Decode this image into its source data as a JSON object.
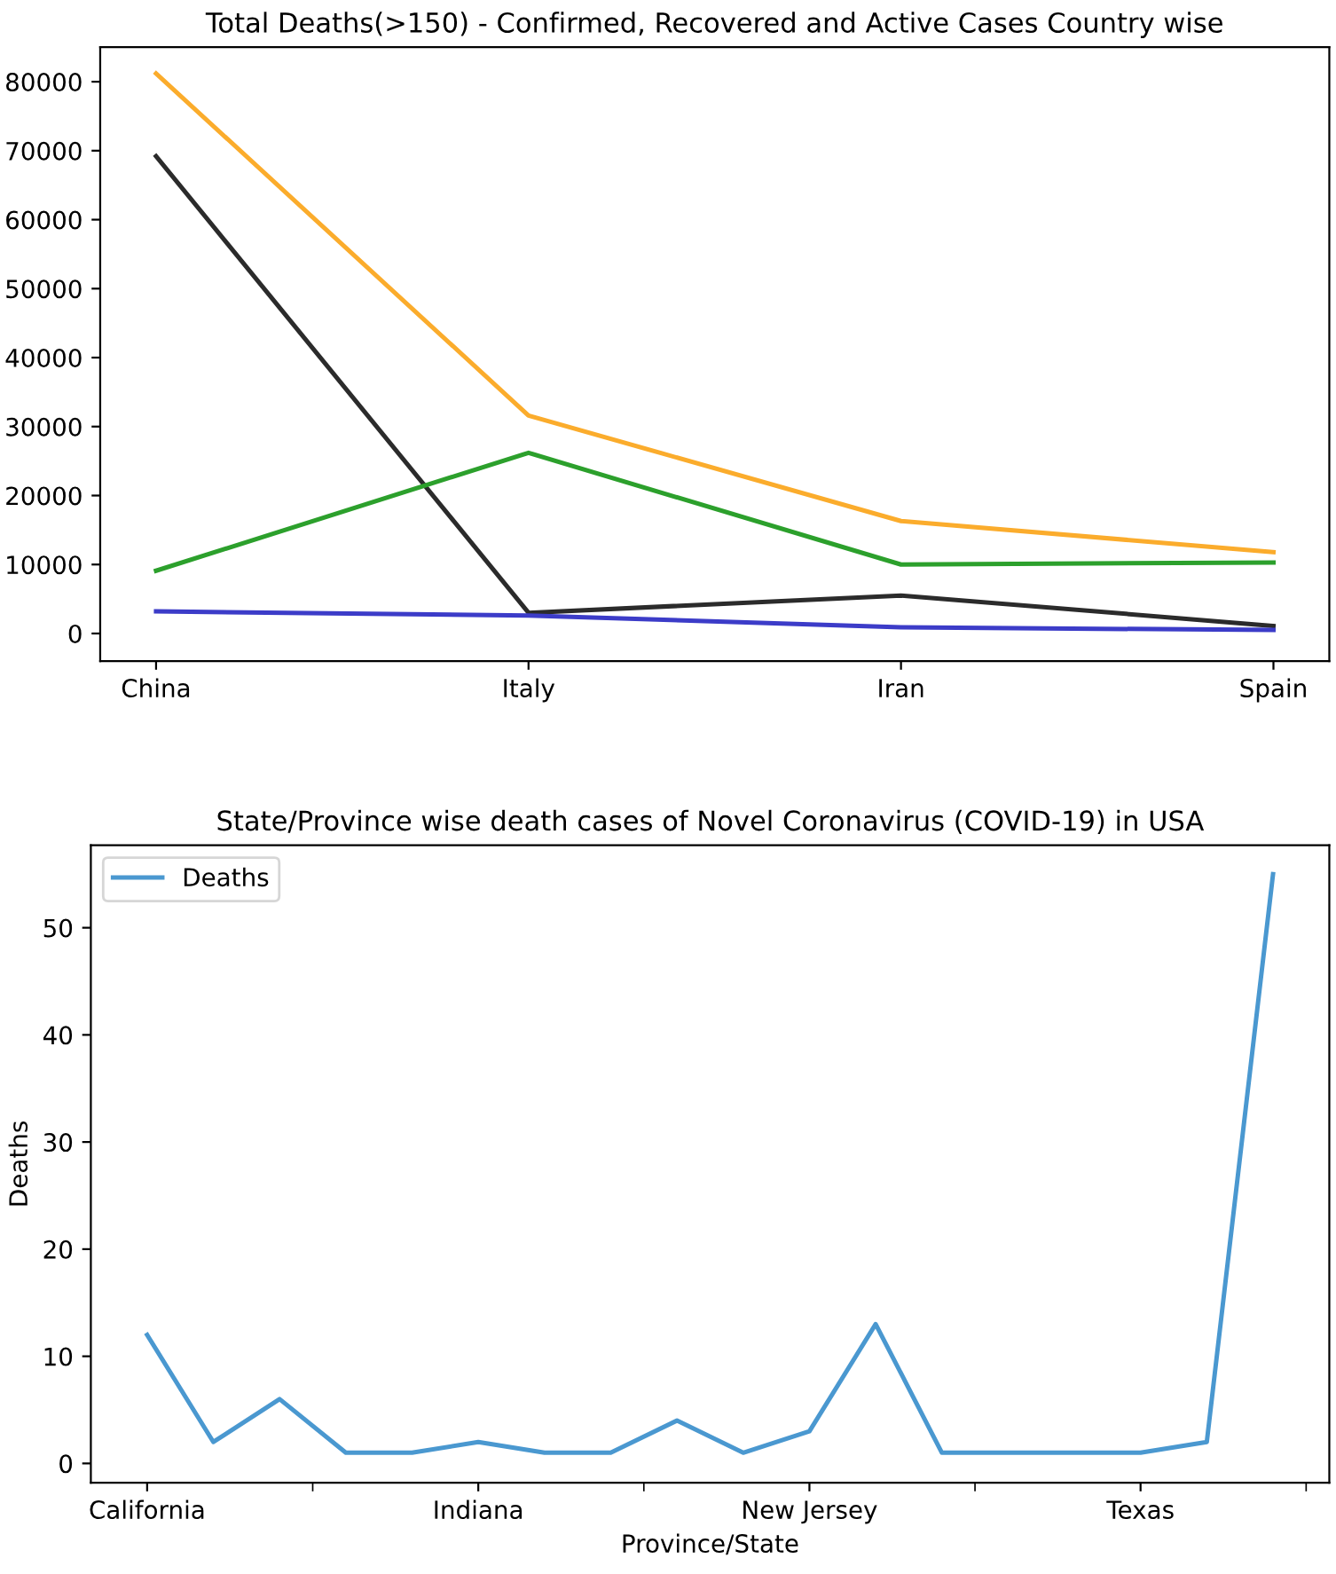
{
  "chart_data": [
    {
      "type": "line",
      "title": "Total Deaths(>150) - Confirmed, Recovered and Active Cases Country wise",
      "categories": [
        "China",
        "Italy",
        "Iran",
        "Spain"
      ],
      "series": [
        {
          "color": "#fbac2c",
          "values": [
            81200,
            31600,
            16300,
            11800
          ]
        },
        {
          "color": "#2b2b2b",
          "values": [
            69200,
            3000,
            5500,
            1100
          ]
        },
        {
          "color": "#2ca02c",
          "values": [
            9100,
            26200,
            10000,
            10300
          ]
        },
        {
          "color": "#3c3cc8",
          "values": [
            3200,
            2600,
            900,
            500
          ]
        }
      ],
      "ylim": [
        -4000,
        85000
      ],
      "yticks": [
        0,
        10000,
        20000,
        30000,
        40000,
        50000,
        60000,
        70000,
        80000
      ],
      "grid": false,
      "legend": false
    },
    {
      "type": "line",
      "title": "State/Province wise death cases of Novel Coronavirus (COVID-19) in USA",
      "xlabel": "Province/State",
      "ylabel": "Deaths",
      "categories": [
        "California",
        null,
        null,
        null,
        null,
        "Indiana",
        null,
        null,
        null,
        null,
        "New Jersey",
        null,
        null,
        null,
        null,
        "Texas",
        null,
        null
      ],
      "series": [
        {
          "name": "Deaths",
          "color": "#4a98d0",
          "values": [
            12,
            2,
            6,
            1,
            1,
            2,
            1,
            1,
            4,
            1,
            3,
            13,
            1,
            1,
            1,
            1,
            2,
            55
          ]
        }
      ],
      "ylim": [
        -1.8,
        57.7
      ],
      "yticks": [
        0,
        10,
        20,
        30,
        40,
        50
      ],
      "grid": false,
      "legend": "top left"
    }
  ]
}
